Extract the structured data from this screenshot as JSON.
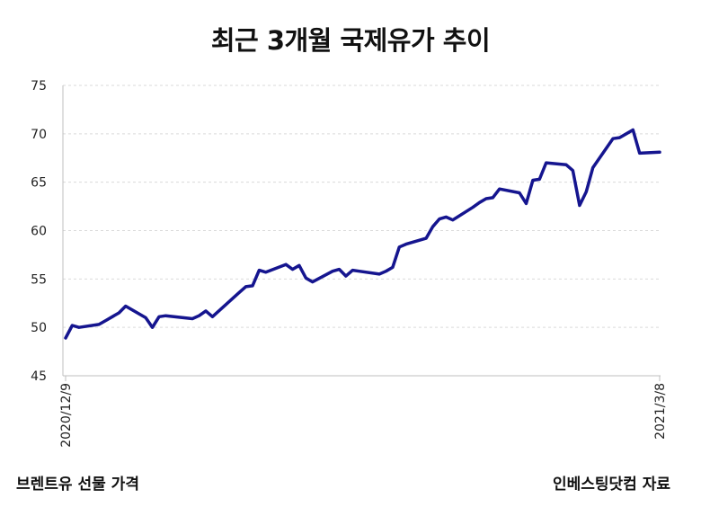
{
  "title": "최근 3개월 국제유가 추이",
  "footer": {
    "source_label": "브렌트유 선물 가격",
    "credit": "인베스팅닷컴 자료"
  },
  "colors": {
    "line": "#15158f",
    "grid": "#d9d9d9",
    "axis": "#bfbfbf",
    "text": "#222222"
  },
  "chart_data": {
    "type": "line",
    "title": "최근 3개월 국제유가 추이",
    "xlabel": "",
    "ylabel": "",
    "ylim": [
      45,
      75
    ],
    "yticks": [
      45,
      50,
      55,
      60,
      65,
      70,
      75
    ],
    "grid": true,
    "legend": "none",
    "x_tick_labels": [
      "2020/12/9",
      "2021/3/8"
    ],
    "x": [
      "2020-12-09",
      "2020-12-10",
      "2020-12-11",
      "2020-12-14",
      "2020-12-15",
      "2020-12-16",
      "2020-12-17",
      "2020-12-18",
      "2020-12-21",
      "2020-12-22",
      "2020-12-23",
      "2020-12-24",
      "2020-12-28",
      "2020-12-29",
      "2020-12-30",
      "2020-12-31",
      "2021-01-04",
      "2021-01-05",
      "2021-01-06",
      "2021-01-07",
      "2021-01-08",
      "2021-01-11",
      "2021-01-12",
      "2021-01-13",
      "2021-01-14",
      "2021-01-15",
      "2021-01-18",
      "2021-01-19",
      "2021-01-20",
      "2021-01-21",
      "2021-01-22",
      "2021-01-25",
      "2021-01-26",
      "2021-01-27",
      "2021-01-28",
      "2021-01-29",
      "2021-02-01",
      "2021-02-02",
      "2021-02-03",
      "2021-02-04",
      "2021-02-05",
      "2021-02-08",
      "2021-02-09",
      "2021-02-10",
      "2021-02-11",
      "2021-02-12",
      "2021-02-15",
      "2021-02-16",
      "2021-02-17",
      "2021-02-18",
      "2021-02-19",
      "2021-02-22",
      "2021-02-23",
      "2021-02-24",
      "2021-02-25",
      "2021-02-26",
      "2021-03-01",
      "2021-03-02",
      "2021-03-03",
      "2021-03-04",
      "2021-03-05",
      "2021-03-08"
    ],
    "series": [
      {
        "values": [
          48.9,
          50.2,
          50.0,
          50.3,
          50.7,
          51.1,
          51.5,
          52.2,
          51.0,
          50.0,
          51.1,
          51.2,
          50.9,
          51.2,
          51.7,
          51.1,
          53.6,
          54.2,
          54.3,
          55.9,
          55.7,
          56.5,
          56.0,
          56.4,
          55.1,
          54.7,
          55.8,
          56.0,
          55.3,
          55.9,
          55.8,
          55.5,
          55.8,
          56.2,
          58.3,
          58.6,
          59.2,
          60.4,
          61.2,
          61.4,
          61.1,
          62.4,
          62.9,
          63.3,
          63.4,
          64.3,
          63.9,
          62.8,
          65.2,
          65.3,
          67.0,
          66.8,
          66.2,
          62.6,
          64.0,
          66.5,
          69.5,
          69.6,
          70.0,
          70.4,
          68.0,
          68.1
        ]
      }
    ]
  }
}
